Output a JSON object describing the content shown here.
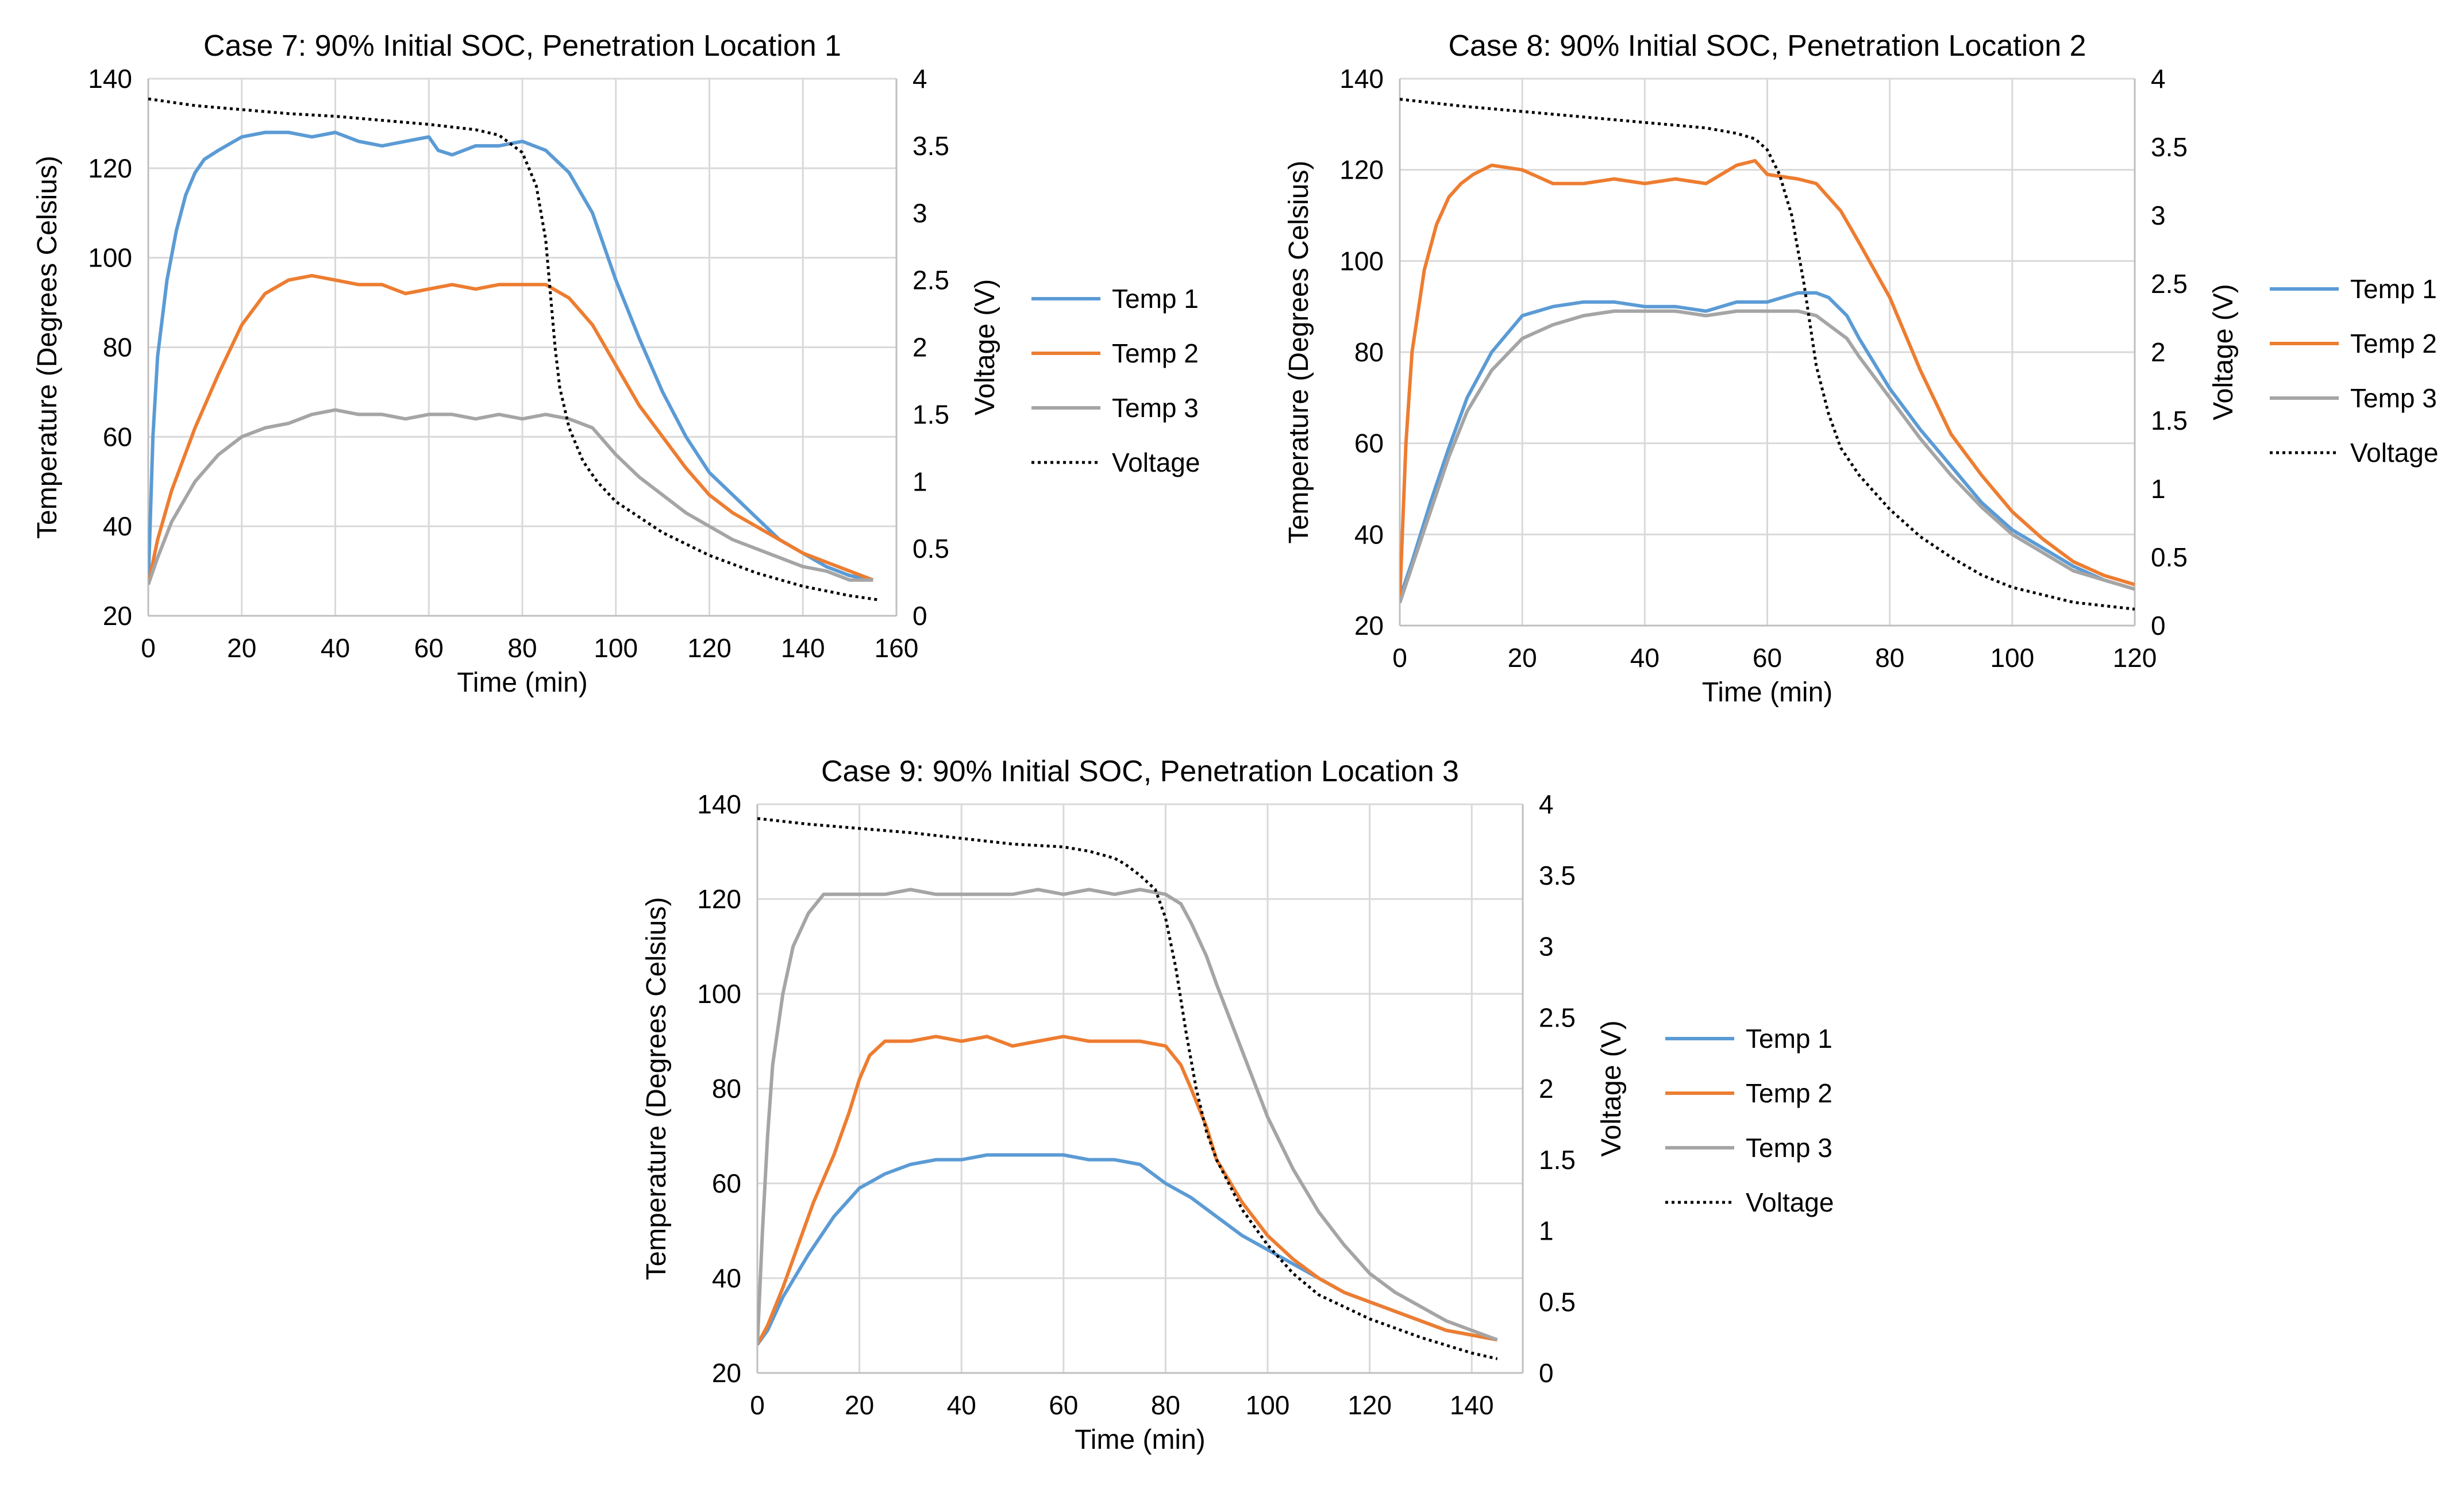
{
  "colors": {
    "temp1": "#5b9bd5",
    "temp2": "#ed7d31",
    "temp3": "#a5a5a5",
    "voltage": "#000000"
  },
  "chart_data": [
    {
      "type": "line",
      "title": "Case 7: 90% Initial SOC, Penetration Location 1",
      "xlabel": "Time (min)",
      "ylabel": "Temperature (Degrees Celsius)",
      "y2label": "Voltage (V)",
      "xlim": [
        0,
        160
      ],
      "ylim": [
        20,
        140
      ],
      "y2lim": [
        0,
        4
      ],
      "xticks": [
        "0",
        "20",
        "40",
        "60",
        "80",
        "100",
        "120",
        "140",
        "160"
      ],
      "yticks": [
        "20",
        "40",
        "60",
        "80",
        "100",
        "120",
        "140"
      ],
      "y2ticks": [
        "0",
        "0.5",
        "1",
        "1.5",
        "2",
        "2.5",
        "3",
        "3.5",
        "4"
      ],
      "legend": [
        "Temp 1",
        "Temp 2",
        "Temp 3",
        "Voltage"
      ],
      "legend_position": "right",
      "series": [
        {
          "name": "Temp 1",
          "axis": "left",
          "x": [
            0,
            1,
            2,
            4,
            6,
            8,
            10,
            12,
            15,
            20,
            25,
            30,
            35,
            40,
            45,
            50,
            55,
            60,
            62,
            65,
            70,
            75,
            80,
            85,
            90,
            95,
            100,
            105,
            110,
            115,
            120,
            125,
            130,
            135,
            140,
            145,
            150,
            155
          ],
          "y": [
            27,
            60,
            78,
            95,
            106,
            114,
            119,
            122,
            124,
            127,
            128,
            128,
            127,
            128,
            126,
            125,
            126,
            127,
            124,
            123,
            125,
            125,
            126,
            124,
            119,
            110,
            95,
            82,
            70,
            60,
            52,
            47,
            42,
            37,
            34,
            31,
            29,
            28
          ]
        },
        {
          "name": "Temp 2",
          "axis": "left",
          "x": [
            0,
            2,
            5,
            10,
            15,
            20,
            25,
            30,
            35,
            40,
            45,
            50,
            55,
            60,
            65,
            70,
            75,
            80,
            85,
            90,
            95,
            100,
            105,
            110,
            115,
            120,
            125,
            130,
            135,
            140,
            145,
            150,
            155
          ],
          "y": [
            27,
            37,
            48,
            62,
            74,
            85,
            92,
            95,
            96,
            95,
            94,
            94,
            92,
            93,
            94,
            93,
            94,
            94,
            94,
            91,
            85,
            76,
            67,
            60,
            53,
            47,
            43,
            40,
            37,
            34,
            32,
            30,
            28
          ]
        },
        {
          "name": "Temp 3",
          "axis": "left",
          "x": [
            0,
            2,
            5,
            10,
            15,
            20,
            25,
            30,
            35,
            40,
            45,
            50,
            55,
            60,
            65,
            70,
            75,
            80,
            85,
            90,
            95,
            100,
            105,
            110,
            115,
            120,
            125,
            130,
            135,
            140,
            145,
            150,
            155
          ],
          "y": [
            27,
            33,
            41,
            50,
            56,
            60,
            62,
            63,
            65,
            66,
            65,
            65,
            64,
            65,
            65,
            64,
            65,
            64,
            65,
            64,
            62,
            56,
            51,
            47,
            43,
            40,
            37,
            35,
            33,
            31,
            30,
            28,
            28
          ]
        },
        {
          "name": "Voltage",
          "axis": "right",
          "x": [
            0,
            10,
            20,
            30,
            40,
            50,
            60,
            70,
            75,
            80,
            83,
            85,
            87,
            88,
            90,
            93,
            96,
            100,
            110,
            120,
            130,
            140,
            150,
            156
          ],
          "y": [
            3.85,
            3.8,
            3.77,
            3.74,
            3.72,
            3.69,
            3.66,
            3.62,
            3.58,
            3.45,
            3.2,
            2.8,
            2.0,
            1.7,
            1.4,
            1.15,
            1.0,
            0.85,
            0.62,
            0.45,
            0.32,
            0.22,
            0.15,
            0.12
          ]
        }
      ]
    },
    {
      "type": "line",
      "title": "Case 8: 90% Initial SOC, Penetration Location 2",
      "xlabel": "Time (min)",
      "ylabel": "Temperature (Degrees Celsius)",
      "y2label": "Voltage (V)",
      "xlim": [
        0,
        120
      ],
      "ylim": [
        20,
        140
      ],
      "y2lim": [
        0,
        4
      ],
      "xticks": [
        "0",
        "20",
        "40",
        "60",
        "80",
        "100",
        "120"
      ],
      "yticks": [
        "20",
        "40",
        "60",
        "80",
        "100",
        "120",
        "140"
      ],
      "y2ticks": [
        "0",
        "0.5",
        "1",
        "1.5",
        "2",
        "2.5",
        "3",
        "3.5",
        "4"
      ],
      "legend": [
        "Temp 1",
        "Temp 2",
        "Temp 3",
        "Voltage"
      ],
      "legend_position": "right",
      "series": [
        {
          "name": "Temp 1",
          "axis": "left",
          "x": [
            0,
            2,
            5,
            8,
            11,
            15,
            20,
            25,
            30,
            35,
            40,
            45,
            50,
            55,
            60,
            65,
            68,
            70,
            73,
            75,
            80,
            85,
            90,
            95,
            100,
            105,
            110,
            115,
            120
          ],
          "y": [
            26,
            34,
            47,
            59,
            70,
            80,
            88,
            90,
            91,
            91,
            90,
            90,
            89,
            91,
            91,
            93,
            93,
            92,
            88,
            83,
            72,
            63,
            55,
            47,
            41,
            37,
            33,
            30,
            28
          ]
        },
        {
          "name": "Temp 2",
          "axis": "left",
          "x": [
            0,
            1,
            2,
            4,
            6,
            8,
            10,
            12,
            15,
            20,
            25,
            30,
            35,
            40,
            45,
            50,
            55,
            58,
            60,
            65,
            68,
            70,
            72,
            75,
            80,
            85,
            90,
            95,
            100,
            105,
            110,
            115,
            120
          ],
          "y": [
            26,
            60,
            80,
            98,
            108,
            114,
            117,
            119,
            121,
            120,
            117,
            117,
            118,
            117,
            118,
            117,
            121,
            122,
            119,
            118,
            117,
            114,
            111,
            104,
            92,
            76,
            62,
            53,
            45,
            39,
            34,
            31,
            29
          ]
        },
        {
          "name": "Temp 3",
          "axis": "left",
          "x": [
            0,
            2,
            5,
            8,
            11,
            15,
            20,
            25,
            30,
            35,
            40,
            45,
            50,
            55,
            60,
            65,
            68,
            70,
            73,
            75,
            80,
            85,
            90,
            95,
            100,
            105,
            110,
            115,
            120
          ],
          "y": [
            25,
            33,
            45,
            57,
            67,
            76,
            83,
            86,
            88,
            89,
            89,
            89,
            88,
            89,
            89,
            89,
            88,
            86,
            83,
            79,
            70,
            61,
            53,
            46,
            40,
            36,
            32,
            30,
            28
          ]
        },
        {
          "name": "Voltage",
          "axis": "right",
          "x": [
            0,
            10,
            20,
            30,
            40,
            50,
            55,
            58,
            60,
            62,
            64,
            66,
            68,
            70,
            72,
            75,
            80,
            85,
            90,
            95,
            100,
            110,
            120
          ],
          "y": [
            3.85,
            3.8,
            3.76,
            3.72,
            3.68,
            3.64,
            3.6,
            3.56,
            3.48,
            3.3,
            3.0,
            2.5,
            1.9,
            1.55,
            1.3,
            1.1,
            0.85,
            0.65,
            0.5,
            0.37,
            0.28,
            0.17,
            0.12
          ]
        }
      ]
    },
    {
      "type": "line",
      "title": "Case 9: 90% Initial SOC, Penetration Location 3",
      "xlabel": "Time (min)",
      "ylabel": "Temperature (Degrees Celsius)",
      "y2label": "Voltage (V)",
      "xlim": [
        0,
        150
      ],
      "ylim": [
        20,
        140
      ],
      "y2lim": [
        0,
        4
      ],
      "xticks": [
        "0",
        "20",
        "40",
        "60",
        "80",
        "100",
        "120",
        "140"
      ],
      "yticks": [
        "20",
        "40",
        "60",
        "80",
        "100",
        "120",
        "140"
      ],
      "y2ticks": [
        "0",
        "0.5",
        "1",
        "1.5",
        "2",
        "2.5",
        "3",
        "3.5",
        "4"
      ],
      "legend": [
        "Temp 1",
        "Temp 2",
        "Temp 3",
        "Voltage"
      ],
      "legend_position": "right",
      "series": [
        {
          "name": "Temp 1",
          "axis": "left",
          "x": [
            0,
            2,
            5,
            10,
            15,
            20,
            25,
            30,
            35,
            40,
            45,
            50,
            55,
            60,
            65,
            70,
            75,
            80,
            85,
            90,
            95,
            100,
            105,
            110,
            115,
            120,
            125,
            130,
            135,
            140,
            145
          ],
          "y": [
            26,
            29,
            36,
            45,
            53,
            59,
            62,
            64,
            65,
            65,
            66,
            66,
            66,
            66,
            65,
            65,
            64,
            60,
            57,
            53,
            49,
            46,
            43,
            40,
            37,
            35,
            33,
            31,
            29,
            28,
            27
          ]
        },
        {
          "name": "Temp 2",
          "axis": "left",
          "x": [
            0,
            2,
            5,
            8,
            11,
            15,
            18,
            20,
            22,
            25,
            30,
            35,
            40,
            45,
            50,
            55,
            60,
            65,
            70,
            75,
            80,
            83,
            85,
            88,
            90,
            95,
            100,
            105,
            110,
            115,
            120,
            125,
            130,
            135,
            140,
            145
          ],
          "y": [
            26,
            30,
            38,
            47,
            56,
            66,
            75,
            82,
            87,
            90,
            90,
            91,
            90,
            91,
            89,
            90,
            91,
            90,
            90,
            90,
            89,
            85,
            80,
            72,
            65,
            56,
            49,
            44,
            40,
            37,
            35,
            33,
            31,
            29,
            28,
            27
          ]
        },
        {
          "name": "Temp 3",
          "axis": "left",
          "x": [
            0,
            1,
            2,
            3,
            5,
            7,
            10,
            13,
            15,
            20,
            25,
            30,
            35,
            40,
            45,
            50,
            55,
            60,
            65,
            70,
            75,
            80,
            83,
            85,
            88,
            90,
            95,
            100,
            105,
            110,
            115,
            120,
            125,
            130,
            135,
            140,
            145
          ],
          "y": [
            26,
            50,
            70,
            85,
            100,
            110,
            117,
            121,
            121,
            121,
            121,
            122,
            121,
            121,
            121,
            121,
            122,
            121,
            122,
            121,
            122,
            121,
            119,
            115,
            108,
            102,
            88,
            74,
            63,
            54,
            47,
            41,
            37,
            34,
            31,
            29,
            27
          ]
        },
        {
          "name": "Voltage",
          "axis": "right",
          "x": [
            0,
            10,
            20,
            30,
            40,
            50,
            60,
            65,
            70,
            72,
            75,
            78,
            80,
            82,
            84,
            86,
            88,
            90,
            95,
            100,
            105,
            110,
            120,
            130,
            140,
            145
          ],
          "y": [
            3.9,
            3.86,
            3.83,
            3.8,
            3.76,
            3.72,
            3.7,
            3.67,
            3.62,
            3.58,
            3.5,
            3.4,
            3.2,
            2.85,
            2.4,
            2.0,
            1.7,
            1.5,
            1.15,
            0.9,
            0.7,
            0.55,
            0.38,
            0.25,
            0.14,
            0.1
          ]
        }
      ]
    }
  ]
}
